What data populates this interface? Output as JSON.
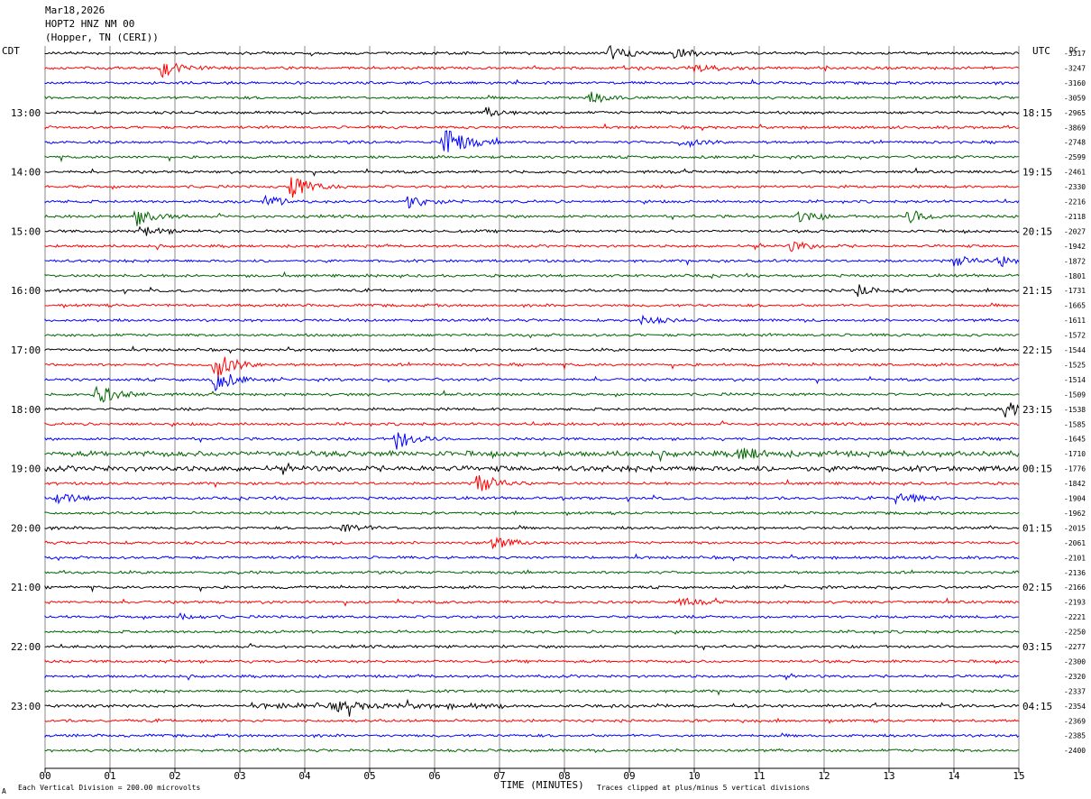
{
  "header": {
    "date": "Mar18,2026",
    "station": "HOPT2 HNZ NM 00",
    "location": "(Hopper, TN (CERI))"
  },
  "chart_data": {
    "type": "line",
    "left_timezone": "CDT",
    "right_timezone": "UTC",
    "dc_label": "DC",
    "x_ticks": [
      "00",
      "01",
      "02",
      "03",
      "04",
      "05",
      "06",
      "07",
      "08",
      "09",
      "10",
      "11",
      "12",
      "13",
      "14",
      "15"
    ],
    "xlim": [
      0,
      15
    ],
    "xlabel": "TIME (MINUTES)",
    "left_hour_labels": [
      "13:00",
      "14:00",
      "15:00",
      "16:00",
      "17:00",
      "18:00",
      "19:00",
      "20:00",
      "21:00",
      "22:00",
      "23:00"
    ],
    "right_hour_labels": [
      "18:15",
      "19:15",
      "20:15",
      "21:15",
      "22:15",
      "23:15",
      "00:15",
      "01:15",
      "02:15",
      "03:15",
      "04:15"
    ],
    "trace_count": 48,
    "trace_colors": [
      "#000000",
      "#ff0000",
      "#0000ff",
      "#006400"
    ],
    "dc_offsets": [
      -3317,
      -3247,
      -3160,
      -3059,
      -2965,
      -3869,
      -2748,
      -2599,
      -2461,
      -2330,
      -2216,
      -2118,
      -2027,
      -1942,
      -1872,
      -1801,
      -1731,
      -1665,
      -1611,
      -1572,
      -1544,
      -1525,
      -1514,
      -1509,
      -1538,
      -1585,
      -1645,
      -1710,
      -1776,
      -1842,
      -1904,
      -1962,
      -2015,
      -2061,
      -2101,
      -2136,
      -2166,
      -2193,
      -2221,
      -2250,
      -2277,
      -2300,
      -2320,
      -2337,
      -2354,
      -2369,
      -2385,
      -2400
    ],
    "events": [
      {
        "trace": 0,
        "minute": 8.7,
        "amp": 8
      },
      {
        "trace": 0,
        "minute": 9.7,
        "amp": 7
      },
      {
        "trace": 1,
        "minute": 1.8,
        "amp": 9
      },
      {
        "trace": 1,
        "minute": 10.0,
        "amp": 6
      },
      {
        "trace": 3,
        "minute": 8.4,
        "amp": 6
      },
      {
        "trace": 4,
        "minute": 6.8,
        "amp": 5
      },
      {
        "trace": 6,
        "minute": 6.15,
        "amp": 22
      },
      {
        "trace": 6,
        "minute": 9.8,
        "amp": 6
      },
      {
        "trace": 9,
        "minute": 3.8,
        "amp": 14
      },
      {
        "trace": 10,
        "minute": 3.4,
        "amp": 6
      },
      {
        "trace": 10,
        "minute": 5.6,
        "amp": 8
      },
      {
        "trace": 11,
        "minute": 1.4,
        "amp": 10
      },
      {
        "trace": 11,
        "minute": 11.6,
        "amp": 6
      },
      {
        "trace": 11,
        "minute": 13.3,
        "amp": 8
      },
      {
        "trace": 12,
        "minute": 1.5,
        "amp": 6
      },
      {
        "trace": 13,
        "minute": 11.5,
        "amp": 6
      },
      {
        "trace": 14,
        "minute": 14.0,
        "amp": 6
      },
      {
        "trace": 14,
        "minute": 14.7,
        "amp": 6
      },
      {
        "trace": 16,
        "minute": 12.5,
        "amp": 7
      },
      {
        "trace": 18,
        "minute": 9.2,
        "amp": 5
      },
      {
        "trace": 21,
        "minute": 2.6,
        "amp": 18
      },
      {
        "trace": 22,
        "minute": 2.6,
        "amp": 14
      },
      {
        "trace": 23,
        "minute": 0.8,
        "amp": 12
      },
      {
        "trace": 24,
        "minute": 14.8,
        "amp": 9
      },
      {
        "trace": 26,
        "minute": 5.4,
        "amp": 12
      },
      {
        "trace": 27,
        "minute": 10.7,
        "amp": 8
      },
      {
        "trace": 29,
        "minute": 6.65,
        "amp": 12
      },
      {
        "trace": 30,
        "minute": 0.2,
        "amp": 7
      },
      {
        "trace": 30,
        "minute": 13.1,
        "amp": 10
      },
      {
        "trace": 32,
        "minute": 4.6,
        "amp": 6
      },
      {
        "trace": 33,
        "minute": 6.9,
        "amp": 7
      },
      {
        "trace": 37,
        "minute": 9.8,
        "amp": 4
      },
      {
        "trace": 38,
        "minute": 2.1,
        "amp": 4
      },
      {
        "trace": 44,
        "minute": 4.5,
        "amp": 5
      }
    ],
    "noisy_traces": [
      44,
      28,
      27
    ]
  },
  "footer": {
    "scale_note": "Each Vertical Division =  200.00 microvolts",
    "clip_note": "Traces clipped at plus/minus 5 vertical divisions",
    "corner_mark": "A"
  }
}
